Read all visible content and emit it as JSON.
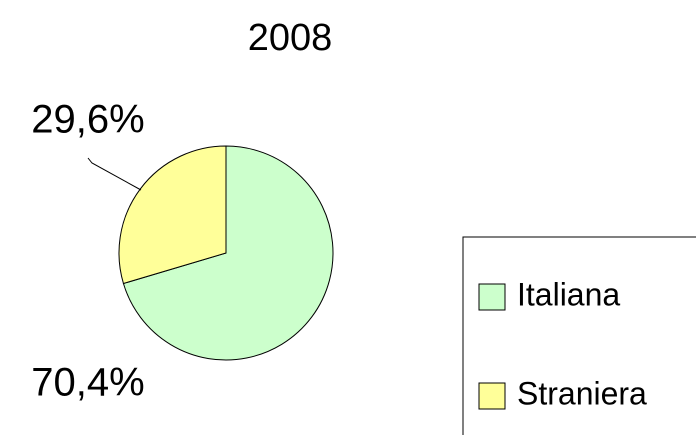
{
  "chart_data": {
    "type": "pie",
    "title": "2008",
    "categories": [
      "Italiana",
      "Straniera"
    ],
    "values": [
      70.4,
      29.6
    ],
    "value_labels": [
      "70,4%",
      "29,6%"
    ],
    "colors": [
      "#ccffcc",
      "#ffff99"
    ],
    "legend": "right"
  }
}
